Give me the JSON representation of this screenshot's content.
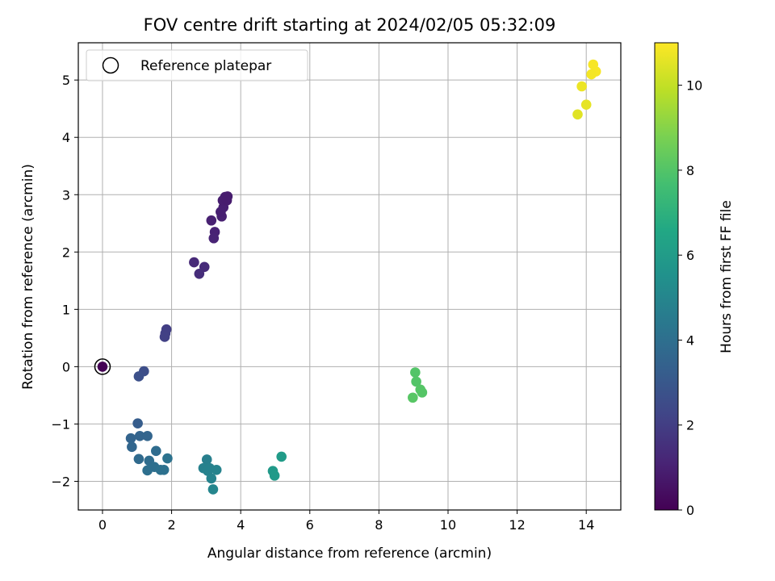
{
  "chart_data": {
    "type": "scatter",
    "title": "FOV centre drift starting at 2024/02/05 05:32:09",
    "xlabel": "Angular distance from reference (arcmin)",
    "ylabel": "Rotation from reference (arcmin)",
    "xlim": [
      -0.7,
      15
    ],
    "ylim": [
      -2.5,
      5.65
    ],
    "xticks": [
      0,
      2,
      4,
      6,
      8,
      10,
      12,
      14
    ],
    "yticks": [
      -2,
      -1,
      0,
      1,
      2,
      3,
      4,
      5
    ],
    "grid": true,
    "legend": {
      "position": "top-left",
      "entries": [
        "Reference platepar"
      ]
    },
    "reference_point": {
      "x": 0,
      "y": 0
    },
    "colorbar": {
      "label": "Hours from first FF file",
      "range": [
        0,
        11
      ],
      "ticks": [
        0,
        2,
        4,
        6,
        8,
        10
      ],
      "colormap": "viridis"
    },
    "points": [
      {
        "x": 0.0,
        "y": 0.0,
        "h": 0.0
      },
      {
        "x": 3.15,
        "y": 2.55,
        "h": 1.0
      },
      {
        "x": 3.25,
        "y": 2.35,
        "h": 1.05
      },
      {
        "x": 3.22,
        "y": 2.24,
        "h": 1.1
      },
      {
        "x": 3.45,
        "y": 2.62,
        "h": 1.0
      },
      {
        "x": 3.5,
        "y": 2.78,
        "h": 0.95
      },
      {
        "x": 3.48,
        "y": 2.9,
        "h": 0.9
      },
      {
        "x": 3.55,
        "y": 2.96,
        "h": 0.9
      },
      {
        "x": 3.62,
        "y": 2.97,
        "h": 0.85
      },
      {
        "x": 3.6,
        "y": 2.9,
        "h": 0.85
      },
      {
        "x": 3.42,
        "y": 2.7,
        "h": 0.95
      },
      {
        "x": 2.65,
        "y": 1.82,
        "h": 1.3
      },
      {
        "x": 2.95,
        "y": 1.74,
        "h": 1.35
      },
      {
        "x": 2.8,
        "y": 1.62,
        "h": 1.4
      },
      {
        "x": 1.85,
        "y": 0.65,
        "h": 2.0
      },
      {
        "x": 1.82,
        "y": 0.58,
        "h": 2.05
      },
      {
        "x": 1.8,
        "y": 0.52,
        "h": 2.1
      },
      {
        "x": 1.2,
        "y": -0.08,
        "h": 2.6
      },
      {
        "x": 1.05,
        "y": -0.17,
        "h": 2.7
      },
      {
        "x": 1.02,
        "y": -0.99,
        "h": 3.2
      },
      {
        "x": 0.82,
        "y": -1.25,
        "h": 3.5
      },
      {
        "x": 1.08,
        "y": -1.21,
        "h": 3.5
      },
      {
        "x": 1.3,
        "y": -1.21,
        "h": 3.55
      },
      {
        "x": 0.85,
        "y": -1.4,
        "h": 3.6
      },
      {
        "x": 1.05,
        "y": -1.61,
        "h": 3.8
      },
      {
        "x": 1.35,
        "y": -1.64,
        "h": 3.9
      },
      {
        "x": 1.55,
        "y": -1.47,
        "h": 3.85
      },
      {
        "x": 1.5,
        "y": -1.75,
        "h": 4.0
      },
      {
        "x": 1.3,
        "y": -1.81,
        "h": 4.0
      },
      {
        "x": 1.68,
        "y": -1.8,
        "h": 4.1
      },
      {
        "x": 1.78,
        "y": -1.8,
        "h": 4.1
      },
      {
        "x": 1.88,
        "y": -1.6,
        "h": 4.15
      },
      {
        "x": 3.02,
        "y": -1.62,
        "h": 4.7
      },
      {
        "x": 2.92,
        "y": -1.77,
        "h": 4.8
      },
      {
        "x": 3.1,
        "y": -1.77,
        "h": 4.8
      },
      {
        "x": 3.05,
        "y": -1.82,
        "h": 4.85
      },
      {
        "x": 3.15,
        "y": -1.95,
        "h": 4.9
      },
      {
        "x": 3.3,
        "y": -1.8,
        "h": 4.9
      },
      {
        "x": 3.2,
        "y": -2.14,
        "h": 5.0
      },
      {
        "x": 5.18,
        "y": -1.57,
        "h": 6.0
      },
      {
        "x": 4.93,
        "y": -1.82,
        "h": 5.9
      },
      {
        "x": 4.98,
        "y": -1.9,
        "h": 5.95
      },
      {
        "x": 9.05,
        "y": -0.1,
        "h": 8.0
      },
      {
        "x": 9.08,
        "y": -0.26,
        "h": 8.0
      },
      {
        "x": 9.2,
        "y": -0.4,
        "h": 8.05
      },
      {
        "x": 9.25,
        "y": -0.45,
        "h": 8.05
      },
      {
        "x": 8.98,
        "y": -0.54,
        "h": 8.1
      },
      {
        "x": 14.2,
        "y": 5.27,
        "h": 10.9
      },
      {
        "x": 14.28,
        "y": 5.15,
        "h": 10.9
      },
      {
        "x": 14.15,
        "y": 5.1,
        "h": 10.85
      },
      {
        "x": 13.87,
        "y": 4.89,
        "h": 10.7
      },
      {
        "x": 14.0,
        "y": 4.57,
        "h": 10.6
      },
      {
        "x": 13.75,
        "y": 4.4,
        "h": 10.5
      }
    ]
  }
}
